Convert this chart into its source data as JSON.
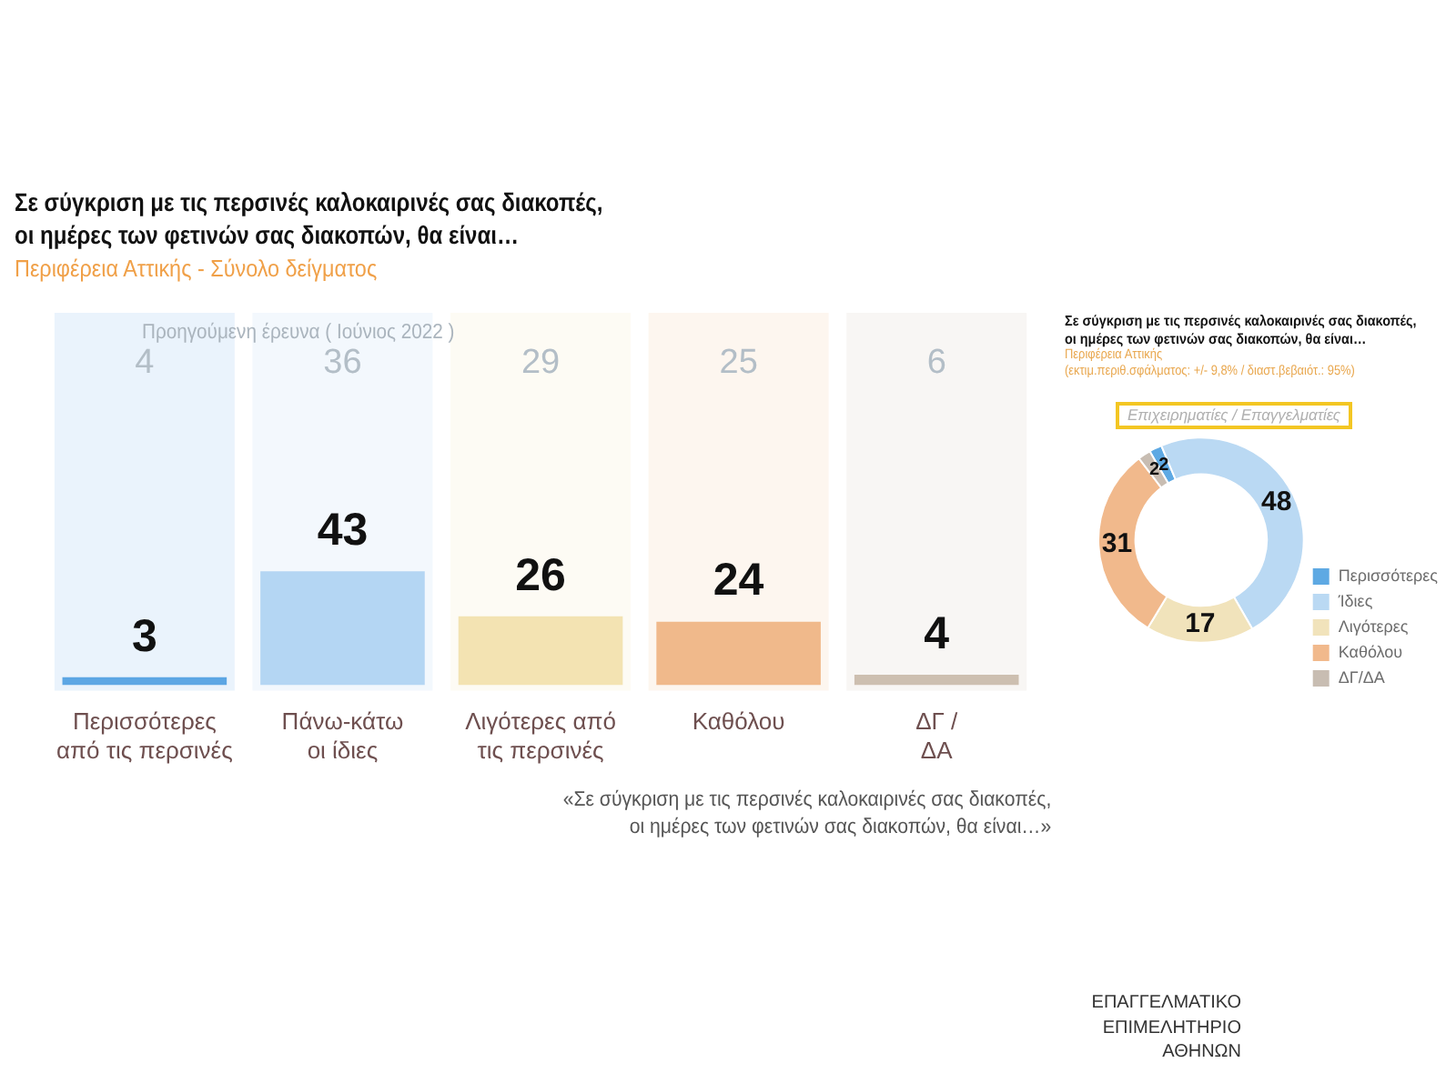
{
  "chart_data": [
    {
      "type": "bar",
      "title": "Σε σύγκριση με τις περσινές καλοκαιρινές σας διακοπές,\nοι ημέρες των φετινών σας διακοπών, θα είναι…",
      "subtitle": "Περιφέρεια Αττικής - Σύνολο δείγματος",
      "categories": [
        "Περισσότερες\nαπό τις περσινές",
        "Πάνω-κάτω\nοι ίδιες",
        "Λιγότερες από\nτις περσινές",
        "Καθόλου",
        "ΔΓ /\nΔΑ"
      ],
      "values": [
        3,
        43,
        26,
        24,
        4
      ],
      "colors": [
        "#5ca6e4",
        "#b4d6f3",
        "#f3e3b2",
        "#f0b98b",
        "#cdbfb0"
      ],
      "data_labels": true,
      "tick_labels": "x",
      "bands": [
        {
          "axis": "x",
          "from": "Περισσότερες\nαπό τις περσινές",
          "to": "Περισσότερες\nαπό τις περσινές",
          "color": "#eaf3fc"
        },
        {
          "axis": "x",
          "from": "Πάνω-κάτω\nοι ίδιες",
          "to": "Πάνω-κάτω\nοι ίδιες",
          "color": "#f3f8fd"
        },
        {
          "axis": "x",
          "from": "Λιγότερες από\nτις περσινές",
          "to": "Λιγότερες από\nτις περσινές",
          "color": "#fdfbf4"
        },
        {
          "axis": "x",
          "from": "Καθόλου",
          "to": "Καθόλου",
          "color": "#fdf6ef"
        },
        {
          "axis": "x",
          "from": "ΔΓ /\nΔΑ",
          "to": "ΔΓ /\nΔΑ",
          "color": "#f8f6f4"
        }
      ],
      "annotations": [
        "Προηγούμενη έρευνα ( Ιούνιος 2022 )",
        "4",
        "36",
        "29",
        "25",
        "6",
        "«Σε σύγκριση με τις περσινές καλοκαιρινές σας διακοπές,\nοι ημέρες των φετινών σας διακοπών, θα είναι…»",
        "ΕΠΑΓΓΕΛΜΑΤΙΚΟ\nΕΠΙΜΕΛΗΤΗΡΙΟ\nΑΘΗΝΩΝ"
      ]
    },
    {
      "type": "donut",
      "title": "Σε σύγκριση με τις περσινές καλοκαιρινές σας διακοπές,\nοι ημέρες των φετινών σας διακοπών, θα είναι…",
      "subtitle": "Περιφέρεια Αττικής\n(εκτιμ.περιθ.σφάλματος: +/- 9,8% / διαστ.βεβαιότ.: 95%)",
      "annotations": [
        "Επιχειρηματίες / Επαγγελματίες"
      ],
      "categories": [
        "Περισσότερες",
        "Ίδιες",
        "Λιγότερες",
        "Καθόλου",
        "ΔΓ/ΔΑ"
      ],
      "values": [
        2,
        48,
        17,
        31,
        2
      ],
      "colors": [
        "#5ea9e3",
        "#bad9f3",
        "#f1e3bb",
        "#f1b98c",
        "#c8bdb2"
      ],
      "data_labels": true,
      "legend": "bottom right"
    }
  ]
}
